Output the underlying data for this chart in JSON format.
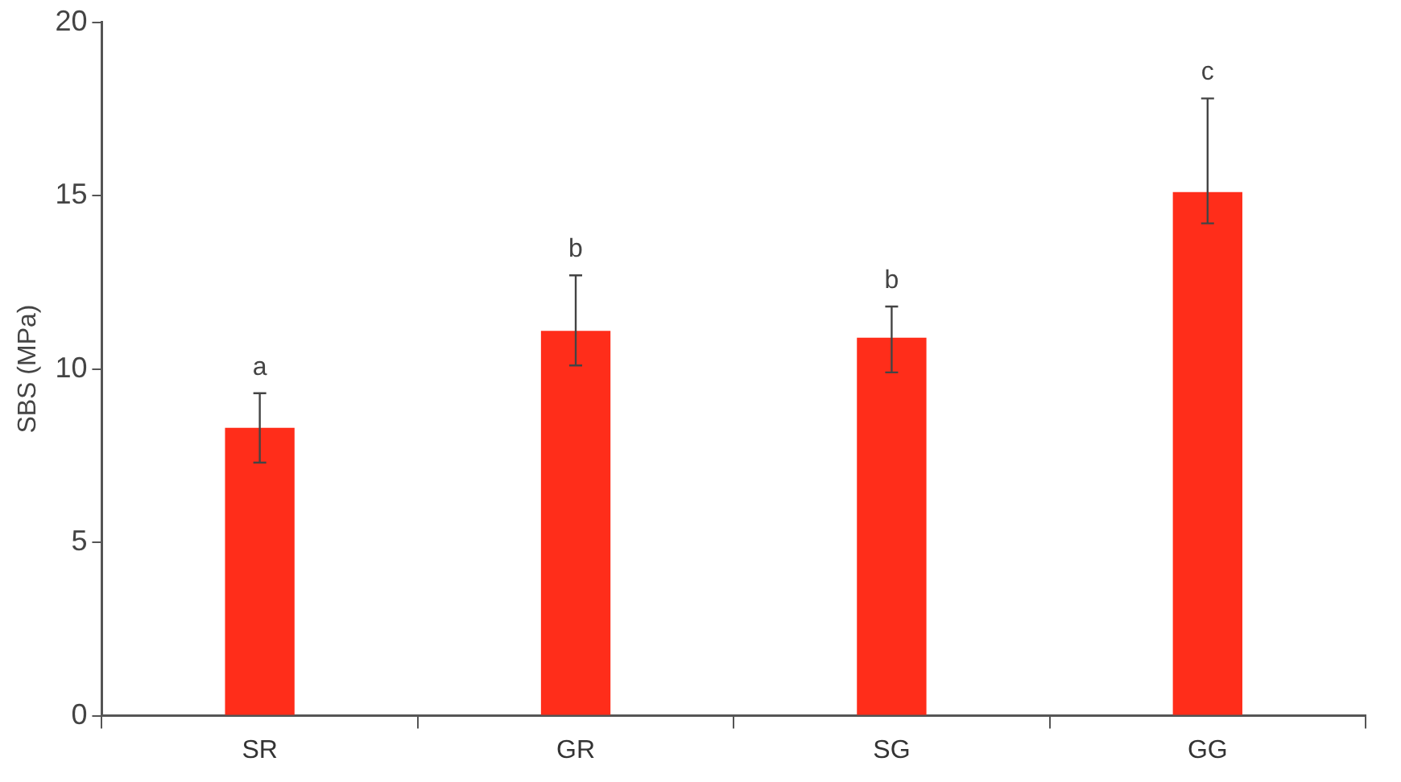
{
  "chart_data": {
    "type": "bar",
    "ylabel": "SBS (MPa)",
    "categories": [
      "SR",
      "GR",
      "SG",
      "GG"
    ],
    "values": [
      8.3,
      11.1,
      10.9,
      15.1
    ],
    "color": "#ff2d1a",
    "errors": [
      [
        7.3,
        9.3
      ],
      [
        10.1,
        12.7
      ],
      [
        9.9,
        11.8
      ],
      [
        14.2,
        17.8
      ]
    ],
    "ylim": [
      0,
      20
    ],
    "yticks": [
      0,
      5,
      10,
      15,
      20
    ],
    "grid": false,
    "annotations": [
      "a",
      "b",
      "b",
      "c"
    ]
  }
}
